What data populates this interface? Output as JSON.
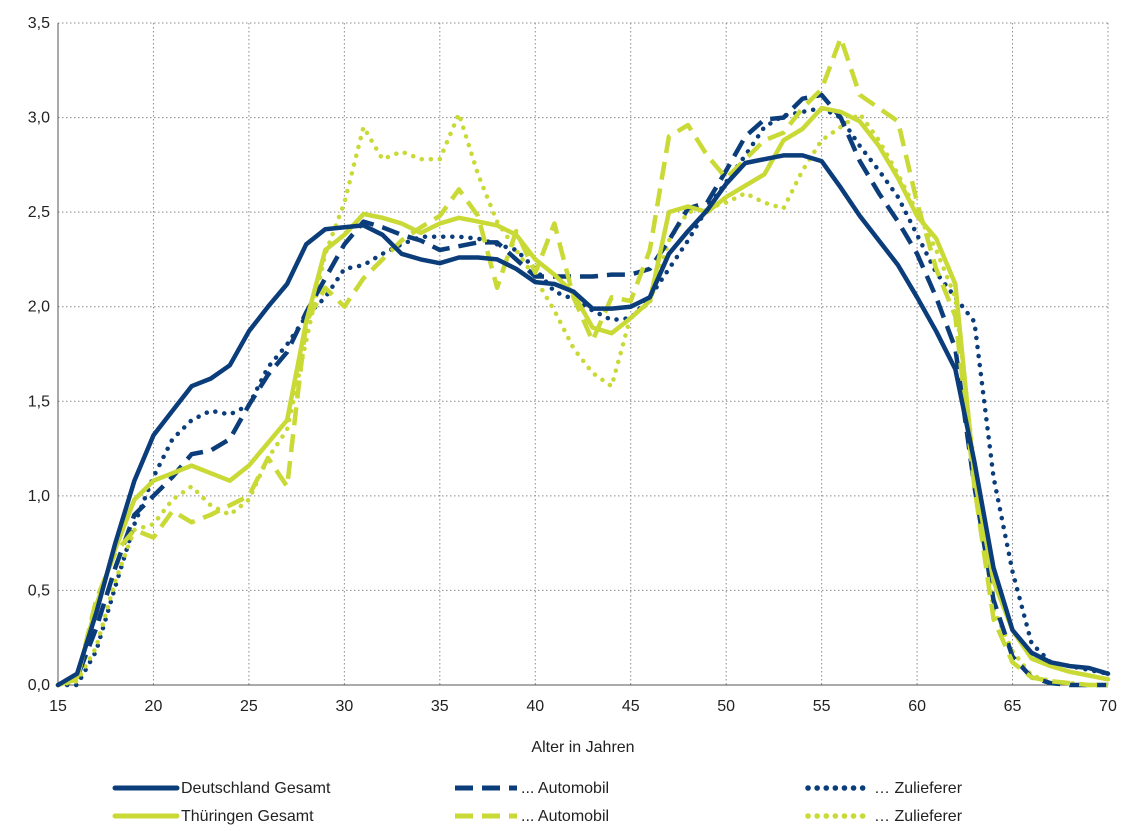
{
  "chart_data": {
    "type": "line",
    "title": "",
    "xlabel": "Alter in Jahren",
    "ylabel": "",
    "xlim": [
      15,
      70
    ],
    "ylim": [
      0,
      3.5
    ],
    "x_ticks": [
      15,
      20,
      25,
      30,
      35,
      40,
      45,
      50,
      55,
      60,
      65,
      70
    ],
    "y_ticks": [
      0,
      0.5,
      1.0,
      1.5,
      2.0,
      2.5,
      3.0,
      3.5
    ],
    "y_tick_labels": [
      "0,0",
      "0,5",
      "1,0",
      "1,5",
      "2,0",
      "2,5",
      "3,0",
      "3,5"
    ],
    "grid": "on",
    "legend_position": "bottom",
    "colors": {
      "deutschland": "#0b3d7a",
      "thueringen": "#c9d935"
    },
    "x": [
      15,
      16,
      17,
      18,
      19,
      20,
      21,
      22,
      23,
      24,
      25,
      26,
      27,
      28,
      29,
      30,
      31,
      32,
      33,
      34,
      35,
      36,
      37,
      38,
      39,
      40,
      41,
      42,
      43,
      44,
      45,
      46,
      47,
      48,
      49,
      50,
      51,
      52,
      53,
      54,
      55,
      56,
      57,
      58,
      59,
      60,
      61,
      62,
      63,
      64,
      65,
      66,
      67,
      68,
      69,
      70
    ],
    "series": [
      {
        "name": "Deutschland Gesamt",
        "color": "#0b3d7a",
        "style": "solid",
        "values": [
          0.0,
          0.06,
          0.38,
          0.75,
          1.08,
          1.32,
          1.45,
          1.58,
          1.62,
          1.69,
          1.87,
          2.0,
          2.12,
          2.33,
          2.41,
          2.42,
          2.43,
          2.38,
          2.28,
          2.25,
          2.23,
          2.26,
          2.26,
          2.25,
          2.2,
          2.13,
          2.12,
          2.08,
          1.99,
          1.99,
          2.0,
          2.05,
          2.28,
          2.4,
          2.51,
          2.65,
          2.76,
          2.78,
          2.8,
          2.8,
          2.77,
          2.63,
          2.48,
          2.35,
          2.22,
          2.05,
          1.87,
          1.67,
          1.18,
          0.62,
          0.29,
          0.17,
          0.12,
          0.1,
          0.09,
          0.06
        ]
      },
      {
        "name": "... Automobil",
        "color": "#0b3d7a",
        "style": "dash",
        "values": [
          0.0,
          0.04,
          0.3,
          0.62,
          0.9,
          1.0,
          1.1,
          1.22,
          1.24,
          1.3,
          1.48,
          1.64,
          1.76,
          1.97,
          2.15,
          2.33,
          2.45,
          2.42,
          2.38,
          2.35,
          2.3,
          2.32,
          2.34,
          2.34,
          2.25,
          2.16,
          2.16,
          2.16,
          2.16,
          2.17,
          2.17,
          2.2,
          2.35,
          2.52,
          2.55,
          2.72,
          2.9,
          2.99,
          3.0,
          3.1,
          3.12,
          3.0,
          2.77,
          2.6,
          2.45,
          2.28,
          2.05,
          1.78,
          1.05,
          0.45,
          0.15,
          0.04,
          0.01,
          0.0,
          0.0,
          0.0
        ]
      },
      {
        "name": "… Zulieferer",
        "color": "#0b3d7a",
        "style": "dot",
        "values": [
          0.0,
          0.0,
          0.18,
          0.52,
          0.85,
          1.1,
          1.3,
          1.4,
          1.45,
          1.43,
          1.48,
          1.68,
          1.8,
          1.95,
          2.05,
          2.2,
          2.22,
          2.28,
          2.33,
          2.37,
          2.37,
          2.37,
          2.36,
          2.33,
          2.3,
          2.2,
          2.08,
          2.04,
          1.98,
          1.93,
          1.94,
          2.05,
          2.2,
          2.35,
          2.52,
          2.66,
          2.8,
          2.95,
          3.01,
          3.03,
          3.05,
          3.0,
          2.85,
          2.72,
          2.58,
          2.38,
          2.18,
          2.05,
          1.92,
          1.1,
          0.6,
          0.22,
          0.12,
          0.1,
          0.08,
          0.06
        ]
      },
      {
        "name": "Thüringen Gesamt",
        "color": "#c9d935",
        "style": "solid",
        "values": [
          0.0,
          0.04,
          0.42,
          0.72,
          0.98,
          1.08,
          1.12,
          1.16,
          1.12,
          1.08,
          1.16,
          1.28,
          1.4,
          1.92,
          2.3,
          2.38,
          2.49,
          2.47,
          2.44,
          2.39,
          2.44,
          2.47,
          2.45,
          2.43,
          2.38,
          2.25,
          2.17,
          2.07,
          1.89,
          1.86,
          1.94,
          2.03,
          2.5,
          2.53,
          2.5,
          2.58,
          2.64,
          2.7,
          2.88,
          2.94,
          3.05,
          3.03,
          2.98,
          2.85,
          2.68,
          2.48,
          2.36,
          2.12,
          1.1,
          0.55,
          0.29,
          0.14,
          0.1,
          0.07,
          0.05,
          0.03
        ]
      },
      {
        "name": "... Automobil",
        "color": "#c9d935",
        "style": "dash",
        "values": [
          0.0,
          0.03,
          0.45,
          0.7,
          0.82,
          0.78,
          0.92,
          0.86,
          0.9,
          0.95,
          1.0,
          1.2,
          1.05,
          1.92,
          2.1,
          2.0,
          2.15,
          2.25,
          2.35,
          2.42,
          2.48,
          2.62,
          2.48,
          2.1,
          2.4,
          2.18,
          2.44,
          2.05,
          1.82,
          2.05,
          2.03,
          2.3,
          2.9,
          2.96,
          2.8,
          2.68,
          2.78,
          2.88,
          2.92,
          3.05,
          3.15,
          3.42,
          3.12,
          3.05,
          2.98,
          2.55,
          2.2,
          1.95,
          1.05,
          0.35,
          0.12,
          0.04,
          0.02,
          0.01,
          0.0,
          0.0
        ]
      },
      {
        "name": "… Zulieferer",
        "color": "#c9d935",
        "style": "dot",
        "values": [
          0.0,
          0.02,
          0.2,
          0.55,
          0.82,
          0.85,
          0.98,
          1.05,
          0.95,
          0.9,
          0.98,
          1.2,
          1.35,
          1.82,
          2.28,
          2.55,
          2.95,
          2.78,
          2.82,
          2.78,
          2.78,
          3.02,
          2.7,
          2.45,
          2.3,
          2.15,
          1.98,
          1.78,
          1.65,
          1.58,
          1.95,
          2.02,
          2.35,
          2.5,
          2.52,
          2.55,
          2.6,
          2.55,
          2.52,
          2.72,
          2.88,
          2.95,
          3.02,
          2.88,
          2.7,
          2.5,
          2.3,
          2.05,
          1.15,
          0.4,
          0.18,
          0.05,
          0.02,
          0.01,
          0.0,
          0.0
        ]
      }
    ]
  }
}
